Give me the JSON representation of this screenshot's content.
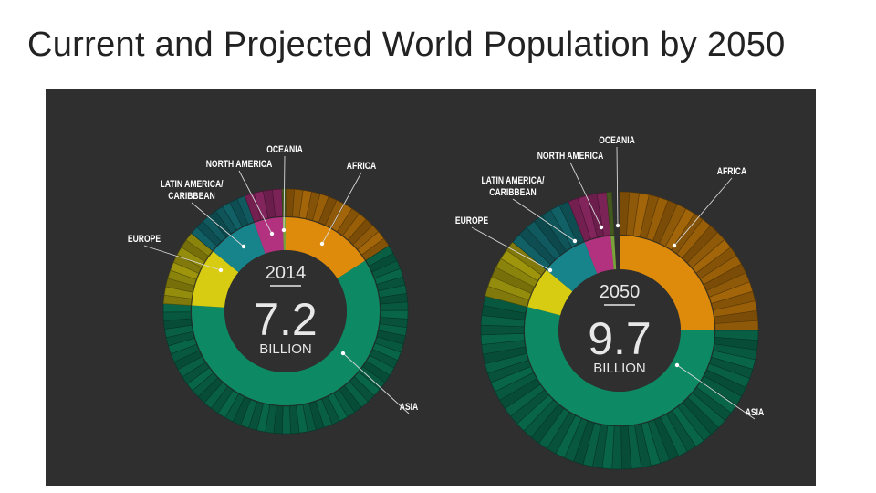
{
  "slide_title": "Current and Projected World Population by 2050",
  "chart_data": [
    {
      "type": "donut",
      "year": "2014",
      "total": "7.2",
      "unit": "BILLION",
      "slices": [
        {
          "region": "AFRICA",
          "share": 0.16,
          "color": "#de8b0c"
        },
        {
          "region": "ASIA",
          "share": 0.6,
          "color": "#0d8a63"
        },
        {
          "region": "EUROPE",
          "share": 0.1,
          "color": "#d8cc12"
        },
        {
          "region": "LATIN AMERICA/ CARIBBEAN",
          "share": 0.086,
          "color": "#17838a"
        },
        {
          "region": "NORTH AMERICA",
          "share": 0.049,
          "color": "#b3327f"
        },
        {
          "region": "OCEANIA",
          "share": 0.005,
          "color": "#7aa23a"
        }
      ]
    },
    {
      "type": "donut",
      "year": "2050",
      "total": "9.7",
      "unit": "BILLION",
      "slices": [
        {
          "region": "AFRICA",
          "share": 0.25,
          "color": "#de8b0c"
        },
        {
          "region": "ASIA",
          "share": 0.54,
          "color": "#0d8a63"
        },
        {
          "region": "EUROPE",
          "share": 0.07,
          "color": "#d8cc12"
        },
        {
          "region": "LATIN AMERICA/ CARIBBEAN",
          "share": 0.08,
          "color": "#17838a"
        },
        {
          "region": "NORTH AMERICA",
          "share": 0.045,
          "color": "#b3327f"
        },
        {
          "region": "OCEANIA",
          "share": 0.006,
          "color": "#7aa23a"
        }
      ]
    }
  ]
}
